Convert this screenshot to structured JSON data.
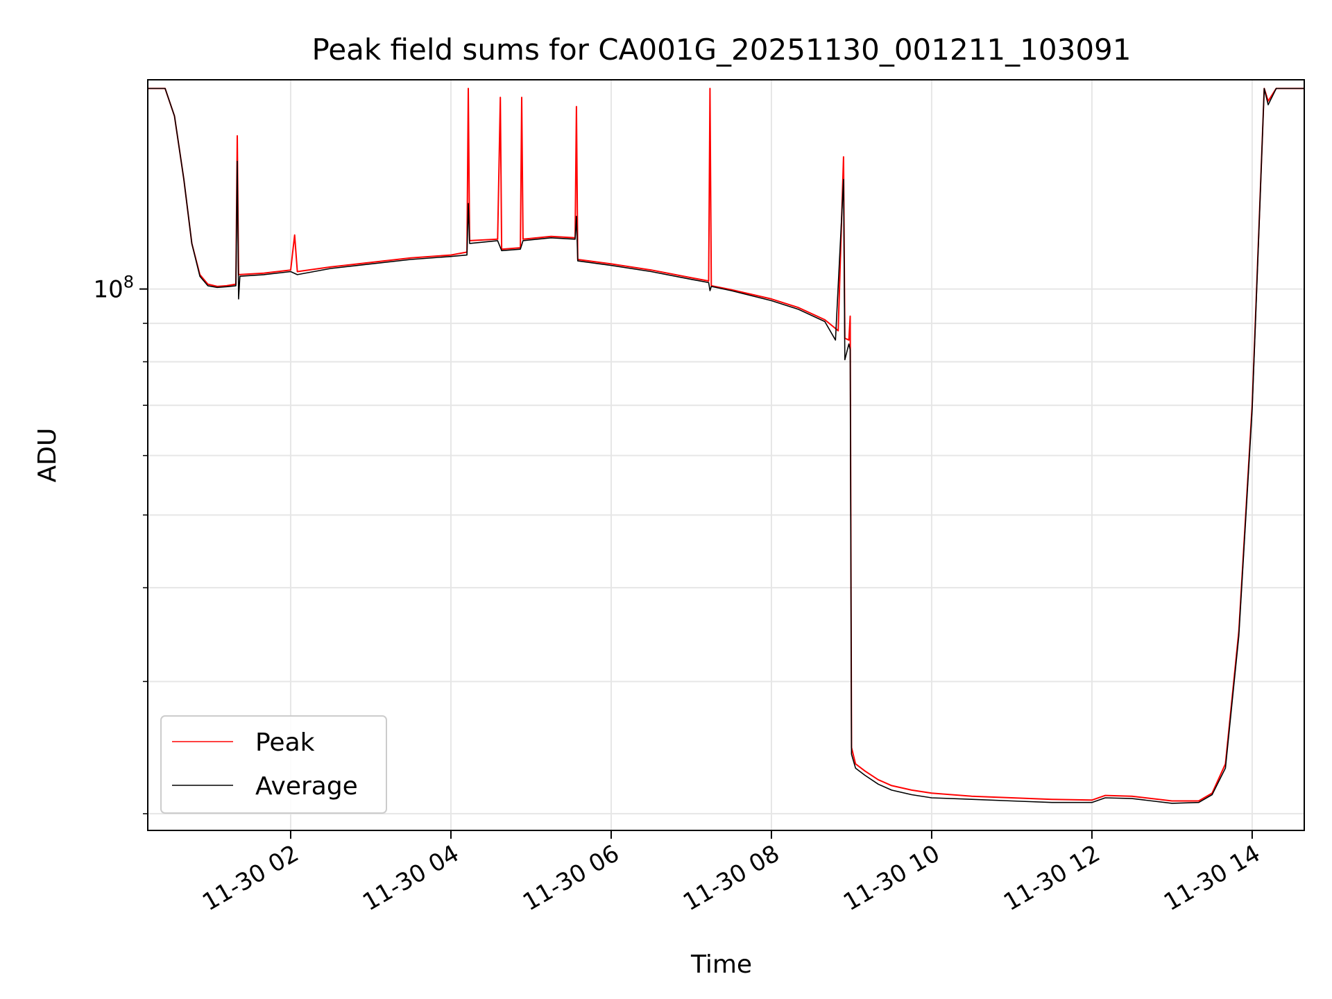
{
  "chart_data": {
    "type": "line",
    "title": "Peak field sums for CA001G_20251130_001211_103091",
    "xlabel": "Time",
    "ylabel": "ADU",
    "yscale": "log",
    "xlim": [
      "2025-11-30 00:13",
      "2025-11-30 14:39"
    ],
    "ylim": [
      19000000,
      190000000
    ],
    "x_ticks": [
      {
        "value": "2025-11-30 02:00",
        "label": "11-30 02"
      },
      {
        "value": "2025-11-30 04:00",
        "label": "11-30 04"
      },
      {
        "value": "2025-11-30 06:00",
        "label": "11-30 06"
      },
      {
        "value": "2025-11-30 08:00",
        "label": "11-30 08"
      },
      {
        "value": "2025-11-30 10:00",
        "label": "11-30 10"
      },
      {
        "value": "2025-11-30 12:00",
        "label": "11-30 12"
      },
      {
        "value": "2025-11-30 14:00",
        "label": "11-30 14"
      }
    ],
    "y_ticks": [
      {
        "value": 100000000,
        "base": "10",
        "exp": "8"
      }
    ],
    "y_minor_ticks": [
      20000000,
      30000000,
      40000000,
      50000000,
      60000000,
      70000000,
      80000000,
      90000000
    ],
    "grid": true,
    "legend_position": "lower-left",
    "series": [
      {
        "name": "Peak",
        "color": "#ff0000",
        "points": [
          [
            "2025-11-30 00:13",
            185000000
          ],
          [
            "2025-11-30 00:26",
            185000000
          ],
          [
            "2025-11-30 00:33",
            170000000
          ],
          [
            "2025-11-30 00:40",
            140000000
          ],
          [
            "2025-11-30 00:46",
            115000000
          ],
          [
            "2025-11-30 00:52",
            104500000
          ],
          [
            "2025-11-30 00:58",
            101500000
          ],
          [
            "2025-11-30 01:05",
            100800000
          ],
          [
            "2025-11-30 01:12",
            101000000
          ],
          [
            "2025-11-30 01:19",
            101500000
          ],
          [
            "2025-11-30 01:20",
            160000000
          ],
          [
            "2025-11-30 01:21",
            104500000
          ],
          [
            "2025-11-30 01:40",
            105000000
          ],
          [
            "2025-11-30 02:00",
            106000000
          ],
          [
            "2025-11-30 02:03",
            118000000
          ],
          [
            "2025-11-30 02:05",
            105500000
          ],
          [
            "2025-11-30 02:30",
            107000000
          ],
          [
            "2025-11-30 03:00",
            108500000
          ],
          [
            "2025-11-30 03:30",
            110000000
          ],
          [
            "2025-11-30 04:00",
            111000000
          ],
          [
            "2025-11-30 04:12",
            112000000
          ],
          [
            "2025-11-30 04:13",
            185000000
          ],
          [
            "2025-11-30 04:14",
            116000000
          ],
          [
            "2025-11-30 04:35",
            116500000
          ],
          [
            "2025-11-30 04:37",
            180000000
          ],
          [
            "2025-11-30 04:38",
            113000000
          ],
          [
            "2025-11-30 04:52",
            113500000
          ],
          [
            "2025-11-30 04:53",
            180000000
          ],
          [
            "2025-11-30 04:54",
            116500000
          ],
          [
            "2025-11-30 05:15",
            117500000
          ],
          [
            "2025-11-30 05:33",
            117000000
          ],
          [
            "2025-11-30 05:34",
            175000000
          ],
          [
            "2025-11-30 05:35",
            109500000
          ],
          [
            "2025-11-30 06:00",
            108000000
          ],
          [
            "2025-11-30 06:30",
            106000000
          ],
          [
            "2025-11-30 07:00",
            103500000
          ],
          [
            "2025-11-30 07:13",
            102500000
          ],
          [
            "2025-11-30 07:14",
            185000000
          ],
          [
            "2025-11-30 07:15",
            101000000
          ],
          [
            "2025-11-30 07:30",
            99800000
          ],
          [
            "2025-11-30 08:00",
            97000000
          ],
          [
            "2025-11-30 08:20",
            94500000
          ],
          [
            "2025-11-30 08:40",
            91000000
          ],
          [
            "2025-11-30 08:50",
            88000000
          ],
          [
            "2025-11-30 08:54",
            150000000
          ],
          [
            "2025-11-30 08:55",
            86000000
          ],
          [
            "2025-11-30 08:58",
            85500000
          ],
          [
            "2025-11-30 08:59",
            92000000
          ],
          [
            "2025-11-30 09:00",
            24500000
          ],
          [
            "2025-11-30 09:03",
            23300000
          ],
          [
            "2025-11-30 09:10",
            22800000
          ],
          [
            "2025-11-30 09:20",
            22200000
          ],
          [
            "2025-11-30 09:30",
            21800000
          ],
          [
            "2025-11-30 09:45",
            21500000
          ],
          [
            "2025-11-30 10:00",
            21300000
          ],
          [
            "2025-11-30 10:30",
            21100000
          ],
          [
            "2025-11-30 11:00",
            21000000
          ],
          [
            "2025-11-30 11:30",
            20900000
          ],
          [
            "2025-11-30 12:00",
            20850000
          ],
          [
            "2025-11-30 12:10",
            21150000
          ],
          [
            "2025-11-30 12:30",
            21100000
          ],
          [
            "2025-11-30 13:00",
            20800000
          ],
          [
            "2025-11-30 13:20",
            20800000
          ],
          [
            "2025-11-30 13:30",
            21300000
          ],
          [
            "2025-11-30 13:40",
            23300000
          ],
          [
            "2025-11-30 13:50",
            35000000
          ],
          [
            "2025-11-30 14:00",
            70000000
          ],
          [
            "2025-11-30 14:05",
            120000000
          ],
          [
            "2025-11-30 14:09",
            185000000
          ],
          [
            "2025-11-30 14:12",
            178000000
          ],
          [
            "2025-11-30 14:18",
            185000000
          ],
          [
            "2025-11-30 14:39",
            185000000
          ]
        ]
      },
      {
        "name": "Average",
        "color": "#000000",
        "points": [
          [
            "2025-11-30 00:13",
            185000000
          ],
          [
            "2025-11-30 00:26",
            185000000
          ],
          [
            "2025-11-30 00:33",
            170000000
          ],
          [
            "2025-11-30 00:40",
            140000000
          ],
          [
            "2025-11-30 00:46",
            115000000
          ],
          [
            "2025-11-30 00:52",
            104000000
          ],
          [
            "2025-11-30 00:58",
            101000000
          ],
          [
            "2025-11-30 01:05",
            100500000
          ],
          [
            "2025-11-30 01:12",
            100700000
          ],
          [
            "2025-11-30 01:19",
            101000000
          ],
          [
            "2025-11-30 01:20",
            148000000
          ],
          [
            "2025-11-30 01:21",
            97000000
          ],
          [
            "2025-11-30 01:22",
            104000000
          ],
          [
            "2025-11-30 01:40",
            104500000
          ],
          [
            "2025-11-30 02:00",
            105500000
          ],
          [
            "2025-11-30 02:05",
            104500000
          ],
          [
            "2025-11-30 02:30",
            106500000
          ],
          [
            "2025-11-30 03:00",
            108000000
          ],
          [
            "2025-11-30 03:30",
            109500000
          ],
          [
            "2025-11-30 04:00",
            110500000
          ],
          [
            "2025-11-30 04:12",
            111000000
          ],
          [
            "2025-11-30 04:13",
            130000000
          ],
          [
            "2025-11-30 04:14",
            115000000
          ],
          [
            "2025-11-30 04:35",
            116000000
          ],
          [
            "2025-11-30 04:38",
            112500000
          ],
          [
            "2025-11-30 04:52",
            113000000
          ],
          [
            "2025-11-30 04:54",
            116000000
          ],
          [
            "2025-11-30 05:15",
            117000000
          ],
          [
            "2025-11-30 05:33",
            116500000
          ],
          [
            "2025-11-30 05:34",
            125000000
          ],
          [
            "2025-11-30 05:35",
            109000000
          ],
          [
            "2025-11-30 06:00",
            107500000
          ],
          [
            "2025-11-30 06:30",
            105500000
          ],
          [
            "2025-11-30 07:00",
            103000000
          ],
          [
            "2025-11-30 07:13",
            102000000
          ],
          [
            "2025-11-30 07:14",
            99500000
          ],
          [
            "2025-11-30 07:15",
            100800000
          ],
          [
            "2025-11-30 07:30",
            99500000
          ],
          [
            "2025-11-30 08:00",
            96500000
          ],
          [
            "2025-11-30 08:20",
            94000000
          ],
          [
            "2025-11-30 08:40",
            90500000
          ],
          [
            "2025-11-30 08:48",
            85500000
          ],
          [
            "2025-11-30 08:54",
            140000000
          ],
          [
            "2025-11-30 08:55",
            80500000
          ],
          [
            "2025-11-30 08:58",
            84500000
          ],
          [
            "2025-11-30 08:59",
            83000000
          ],
          [
            "2025-11-30 09:00",
            24000000
          ],
          [
            "2025-11-30 09:03",
            23000000
          ],
          [
            "2025-11-30 09:10",
            22500000
          ],
          [
            "2025-11-30 09:20",
            21900000
          ],
          [
            "2025-11-30 09:30",
            21500000
          ],
          [
            "2025-11-30 09:45",
            21200000
          ],
          [
            "2025-11-30 10:00",
            21000000
          ],
          [
            "2025-11-30 10:30",
            20900000
          ],
          [
            "2025-11-30 11:00",
            20800000
          ],
          [
            "2025-11-30 11:30",
            20700000
          ],
          [
            "2025-11-30 12:00",
            20700000
          ],
          [
            "2025-11-30 12:10",
            21000000
          ],
          [
            "2025-11-30 12:30",
            20950000
          ],
          [
            "2025-11-30 13:00",
            20650000
          ],
          [
            "2025-11-30 13:20",
            20700000
          ],
          [
            "2025-11-30 13:30",
            21200000
          ],
          [
            "2025-11-30 13:40",
            23000000
          ],
          [
            "2025-11-30 13:50",
            34500000
          ],
          [
            "2025-11-30 14:00",
            69000000
          ],
          [
            "2025-11-30 14:05",
            119000000
          ],
          [
            "2025-11-30 14:09",
            185000000
          ],
          [
            "2025-11-30 14:12",
            176000000
          ],
          [
            "2025-11-30 14:18",
            185000000
          ],
          [
            "2025-11-30 14:39",
            185000000
          ]
        ]
      }
    ]
  }
}
